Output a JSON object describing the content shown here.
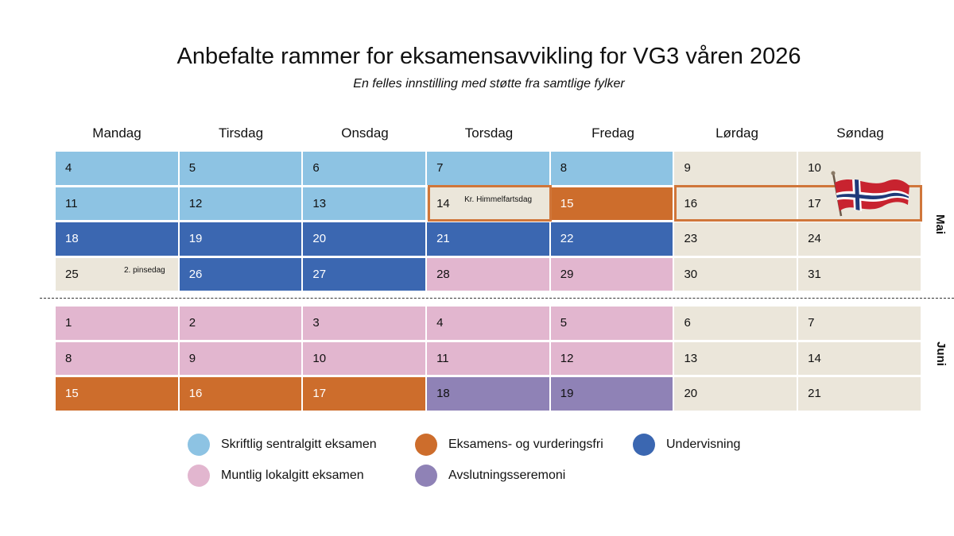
{
  "title": "Anbefalte rammer for eksamensavvikling for VG3 våren 2026",
  "subtitle": "En felles innstilling med støtte fra samtlige fylker",
  "weekdays": [
    "Mandag",
    "Tirsdag",
    "Onsdag",
    "Torsdag",
    "Fredag",
    "Lørdag",
    "Søndag"
  ],
  "months": {
    "may": "Mai",
    "june": "Juni"
  },
  "colors": {
    "light": "#8dc3e3",
    "dark": "#3b67b1",
    "orange": "#cd6d2c",
    "pink": "#e2b6cf",
    "purple": "#8f82b6",
    "beige": "#ebe6da",
    "outline": "#d0763a"
  },
  "may": [
    [
      "4",
      "5",
      "6",
      "7",
      "8",
      "9",
      "10"
    ],
    [
      "11",
      "12",
      "13",
      "14",
      "15",
      "16",
      "17"
    ],
    [
      "18",
      "19",
      "20",
      "21",
      "22",
      "23",
      "24"
    ],
    [
      "25",
      "26",
      "27",
      "28",
      "29",
      "30",
      "31"
    ]
  ],
  "june": [
    [
      "1",
      "2",
      "3",
      "4",
      "5",
      "6",
      "7"
    ],
    [
      "8",
      "9",
      "10",
      "11",
      "12",
      "13",
      "14"
    ],
    [
      "15",
      "16",
      "17",
      "18",
      "19",
      "20",
      "21"
    ]
  ],
  "notes": {
    "ascension": "Kr. Himmelfartsdag",
    "whit_monday": "2. pinsedag"
  },
  "flag_icon": "norwegian-flag-icon",
  "legend": {
    "written": "Skriftlig sentralgitt eksamen",
    "free": "Eksamens- og vurderingsfri",
    "teaching": "Undervisning",
    "oral": "Muntlig lokalgitt eksamen",
    "ceremony": "Avslutningsseremoni"
  }
}
